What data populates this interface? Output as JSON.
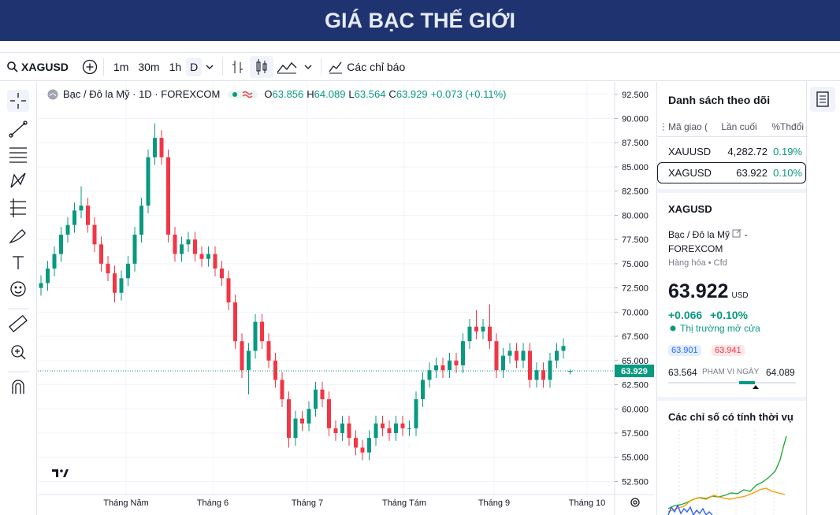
{
  "header": {
    "title": "GIÁ BẠC THẾ GIỚI"
  },
  "toolbar": {
    "symbol": "XAGUSD",
    "intervals": [
      "1m",
      "30m",
      "1h",
      "D"
    ],
    "indicators": "Các chỉ báo"
  },
  "chart_data": {
    "type": "candlestick",
    "title": "Bạc / Đô la Mỹ · 1D · FOREXCOM",
    "ohlc_labels": [
      "O",
      "H",
      "L",
      "C"
    ],
    "change": "+0.073 (+0.11%)",
    "open": [
      72.5,
      73,
      74.5,
      76,
      78,
      79,
      80.5,
      81,
      79,
      77,
      75,
      74,
      72,
      73.5,
      75,
      78,
      81,
      86,
      88,
      86,
      78,
      76,
      77,
      77.5,
      76,
      75.5,
      76,
      74.5,
      73.5,
      71,
      67,
      64,
      66,
      69,
      67,
      65,
      63,
      61,
      57,
      59,
      58.5,
      60,
      62,
      61,
      58,
      57.5,
      58.5,
      57,
      56,
      55.5,
      57,
      58.5,
      58,
      57.5,
      58.5,
      58,
      58,
      61,
      63,
      64,
      64.5,
      64,
      65,
      64.5,
      67,
      68.5,
      68,
      68.5,
      67,
      64,
      65.5,
      66,
      65,
      66,
      63,
      64,
      63,
      65,
      66,
      63.856
    ],
    "high": [
      73.8,
      75.3,
      76.8,
      78.8,
      79.8,
      81.3,
      83,
      81.8,
      79.8,
      77.8,
      75.8,
      74.8,
      74.3,
      75.8,
      78.8,
      81.8,
      86.8,
      89.5,
      88.8,
      86.8,
      78.8,
      77.8,
      78.3,
      78.3,
      76.8,
      76.8,
      76.8,
      75.3,
      74.3,
      71.8,
      67.8,
      66.8,
      69.8,
      69.8,
      67.8,
      65.8,
      63.8,
      61.8,
      59.8,
      59.8,
      60.8,
      62.8,
      62.8,
      61.8,
      58.8,
      59.3,
      59.3,
      57.8,
      56.8,
      57.8,
      59.3,
      59.3,
      58.8,
      59.3,
      59.3,
      58.8,
      61.8,
      63.8,
      64.8,
      65.3,
      65.3,
      65.8,
      65.8,
      67.8,
      69.3,
      70.2,
      69.3,
      70.8,
      67.8,
      66.3,
      66.8,
      66.8,
      66.8,
      66.8,
      64.8,
      64.8,
      65.8,
      66.8,
      67.3,
      64.089
    ],
    "low": [
      71.7,
      72.2,
      73.7,
      75.2,
      77.2,
      78.2,
      79.7,
      78.2,
      76.2,
      74.2,
      73.2,
      71,
      71.2,
      72.7,
      74.2,
      77.2,
      80.2,
      85.2,
      85.2,
      77.2,
      75.2,
      75.2,
      76.2,
      75.2,
      74.7,
      74.7,
      73.7,
      72.7,
      70.2,
      66.2,
      63.2,
      61.5,
      65.2,
      66.2,
      64.2,
      62.2,
      60.2,
      56,
      56.2,
      57.7,
      57.7,
      59.2,
      60.2,
      57.2,
      56.7,
      56.7,
      56.2,
      55.2,
      54.7,
      54.7,
      56.2,
      57.2,
      56.7,
      56.7,
      57.2,
      57.2,
      57.2,
      60.2,
      62.2,
      63.2,
      63.2,
      63.2,
      63.7,
      63.7,
      66.2,
      67.2,
      67.2,
      66.2,
      63.2,
      63.2,
      64.7,
      64.2,
      64.2,
      62.2,
      62.2,
      62.2,
      62.2,
      64.2,
      65.2,
      63.564
    ],
    "close": [
      73,
      74.5,
      76,
      78,
      79,
      80.5,
      81,
      79,
      77,
      75,
      74,
      72,
      73.5,
      75,
      78,
      81,
      86,
      88,
      86,
      78,
      76,
      77,
      77.5,
      76,
      75.5,
      76,
      74.5,
      73.5,
      71,
      67,
      64,
      66,
      69,
      67,
      65,
      63,
      61,
      57,
      59,
      58.5,
      60,
      62,
      61,
      58,
      57.5,
      58.5,
      57,
      56,
      55.5,
      57,
      58.5,
      58,
      57.5,
      58.5,
      58,
      58,
      61,
      63,
      64,
      64.5,
      64,
      65,
      64.5,
      67,
      68.5,
      68,
      68.5,
      67,
      64,
      65.5,
      66,
      65,
      66,
      63,
      64,
      63,
      65,
      66,
      66.5,
      63.929
    ],
    "up_color": "#089981",
    "down_color": "#f23645",
    "grid": true,
    "ylim": [
      51.4,
      93.7
    ],
    "yticks": [
      {
        "value": 52.5,
        "label": "52.500"
      },
      {
        "value": 55,
        "label": "55.000"
      },
      {
        "value": 57.5,
        "label": "57.500"
      },
      {
        "value": 60,
        "label": "60.000"
      },
      {
        "value": 62.5,
        "label": "62.500"
      },
      {
        "value": 65,
        "label": "65.000"
      },
      {
        "value": 67.5,
        "label": "67.500"
      },
      {
        "value": 70,
        "label": "70.000"
      },
      {
        "value": 72.5,
        "label": "72.500"
      },
      {
        "value": 75,
        "label": "75.000"
      },
      {
        "value": 77.5,
        "label": "77.500"
      },
      {
        "value": 80,
        "label": "80.000"
      },
      {
        "value": 82.5,
        "label": "82.500"
      },
      {
        "value": 85,
        "label": "85.000"
      },
      {
        "value": 87.5,
        "label": "87.500"
      },
      {
        "value": 90,
        "label": "90.000"
      },
      {
        "value": 92.5,
        "label": "92.500"
      }
    ],
    "xticks": [
      "Tháng Năm",
      "Tháng 6",
      "Tháng 7",
      "Tháng Tám",
      "Tháng 9",
      "Tháng 10"
    ]
  },
  "watchlist": {
    "title": "Danh sách theo dõi",
    "columns": [
      "Mã giao (",
      "Lần cuối",
      "%Thđổi"
    ],
    "rows": [
      [
        "XAUUSD",
        "4,282.72",
        "0.19%"
      ],
      [
        "XAGUSD",
        "63.922",
        "0.10%"
      ]
    ]
  },
  "details": {
    "symbol": "XAGUSD",
    "name": "Bạc / Đô la Mỹ",
    "separator": "-",
    "exchange": "FOREXCOM",
    "type_line": "Hàng hóa • Cfd",
    "price": "63.922",
    "currency": "USD",
    "change": "+0.066",
    "change_pct": "+0.10%",
    "status": "Thị trường mở cửa",
    "bid": "63.901",
    "ask": "63.941",
    "range_low": "63.564",
    "range_label": "PHẠM VI NGÀY",
    "range_high": "64.089",
    "seasonal_title": "Các chỉ số có tính thời vụ"
  }
}
